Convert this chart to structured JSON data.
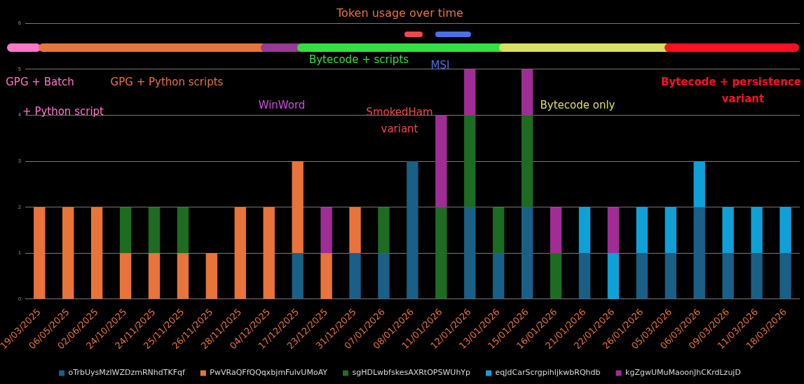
{
  "chart_data": {
    "type": "bar",
    "title": "Token usage over time",
    "stacked": true,
    "categories": [
      "19/03/2025",
      "06/05/2025",
      "02/06/2025",
      "24/10/2025",
      "24/11/2025",
      "25/11/2025",
      "26/11/2025",
      "28/11/2025",
      "04/12/2025",
      "17/12/2025",
      "23/12/2025",
      "31/12/2025",
      "07/01/2026",
      "08/01/2026",
      "11/01/2026",
      "12/01/2026",
      "13/01/2026",
      "15/01/2026",
      "16/01/2026",
      "21/01/2026",
      "22/01/2026",
      "26/01/2026",
      "05/03/2026",
      "06/03/2026",
      "09/03/2026",
      "11/03/2026",
      "18/03/2026"
    ],
    "series": [
      {
        "name": "oTrbUysMzlWZDzmRNhdTKFqf",
        "color": "#1a5f85",
        "values": [
          null,
          null,
          null,
          null,
          null,
          null,
          null,
          null,
          null,
          1,
          null,
          1,
          1,
          3,
          null,
          2,
          1,
          2,
          null,
          1,
          null,
          1,
          1,
          2,
          1,
          1,
          1
        ]
      },
      {
        "name": "PwVRaQFfQQqxbjmFulvUMoAY",
        "color": "#e8743b",
        "values": [
          2,
          2,
          2,
          1,
          1,
          1,
          1,
          2,
          2,
          2,
          1,
          1,
          null,
          null,
          null,
          null,
          null,
          null,
          null,
          null,
          null,
          null,
          null,
          null,
          null,
          null,
          null
        ]
      },
      {
        "name": "sgHDLwbfskesAXRtOPSWUhYp",
        "color": "#1e6b22",
        "values": [
          null,
          null,
          null,
          1,
          1,
          1,
          null,
          null,
          null,
          null,
          null,
          null,
          1,
          null,
          2,
          2,
          1,
          2,
          1,
          null,
          null,
          null,
          null,
          null,
          null,
          null,
          null
        ]
      },
      {
        "name": "eqJdCarScrgpihljkwbRQhdb",
        "color": "#0fa0d8",
        "values": [
          null,
          null,
          null,
          null,
          null,
          null,
          null,
          null,
          null,
          null,
          null,
          null,
          null,
          null,
          null,
          null,
          null,
          null,
          null,
          1,
          1,
          1,
          1,
          1,
          1,
          1,
          1
        ]
      },
      {
        "name": "kgZgwUMuMaoonJhCKrdLzujD",
        "color": "#a02d96",
        "values": [
          null,
          null,
          null,
          null,
          null,
          null,
          null,
          null,
          null,
          null,
          1,
          null,
          null,
          null,
          2,
          1,
          null,
          1,
          1,
          null,
          1,
          null,
          null,
          null,
          null,
          null,
          null
        ]
      }
    ],
    "ylim": [
      0,
      6
    ],
    "yticks": [
      0,
      1,
      2,
      3,
      4,
      5,
      6
    ],
    "grid": "y",
    "legend": "bottom",
    "annotations": [
      "GPG + Batch",
      "+ Python script",
      "GPG + Python scripts",
      "WinWord",
      "SmokedHam variant",
      "Bytecode + scripts",
      "MSI",
      "Bytecode only",
      "Bytecode + persistence variant"
    ]
  }
}
